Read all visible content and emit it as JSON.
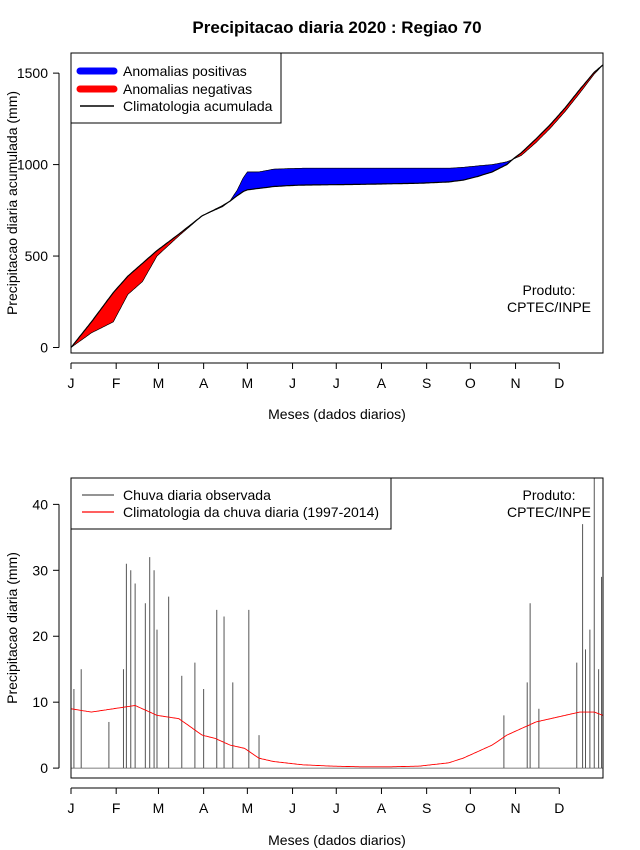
{
  "title": "Precipitacao diaria 2020 : Regiao 70",
  "colors": {
    "positive": "#0000ff",
    "negative": "#ff0000",
    "climatology_line": "#000000",
    "observed_bars": "#555555",
    "daily_climatology": "#ff0000"
  },
  "chart_data": [
    {
      "type": "area",
      "ylabel": "Precipitacao diaria acumulada (mm)",
      "xlabel": "Meses (dados diarios)",
      "month_ticks": [
        "J",
        "F",
        "M",
        "A",
        "M",
        "J",
        "J",
        "A",
        "S",
        "O",
        "N",
        "D"
      ],
      "x_range_days": [
        1,
        366
      ],
      "ylim": [
        -30,
        1610
      ],
      "y_ticks": [
        0,
        500,
        1000,
        1500
      ],
      "legend_position": "top-left",
      "legend": [
        "Anomalias positivas",
        "Anomalias negativas",
        "Climatologia acumulada"
      ],
      "annotation": [
        "Produto:",
        "CPTEC/INPE"
      ],
      "observed_cumulative": {
        "days": [
          1,
          15,
          30,
          40,
          50,
          60,
          75,
          91,
          105,
          110,
          115,
          119,
          122,
          130,
          140,
          150,
          160,
          180,
          200,
          220,
          240,
          260,
          270,
          280,
          290,
          300,
          305,
          310,
          320,
          330,
          340,
          350,
          360,
          366
        ],
        "values": [
          0,
          80,
          140,
          290,
          360,
          500,
          610,
          720,
          770,
          800,
          860,
          925,
          960,
          960,
          975,
          978,
          980,
          980,
          980,
          980,
          980,
          980,
          985,
          993,
          1000,
          1015,
          1032,
          1050,
          1120,
          1200,
          1290,
          1390,
          1495,
          1545
        ]
      },
      "climatology_cumulative": {
        "days": [
          1,
          15,
          30,
          40,
          50,
          60,
          75,
          91,
          105,
          110,
          115,
          119,
          122,
          130,
          140,
          150,
          160,
          180,
          200,
          220,
          240,
          260,
          270,
          280,
          290,
          300,
          305,
          310,
          320,
          330,
          340,
          350,
          360,
          366
        ],
        "values": [
          0,
          140,
          300,
          390,
          460,
          530,
          620,
          720,
          775,
          800,
          830,
          852,
          862,
          870,
          880,
          885,
          888,
          890,
          892,
          895,
          898,
          905,
          915,
          935,
          960,
          1000,
          1035,
          1065,
          1140,
          1220,
          1310,
          1410,
          1505,
          1545
        ]
      }
    },
    {
      "type": "bar",
      "ylabel": "Precipitacao diaria (mm)",
      "xlabel": "Meses (dados diarios)",
      "month_ticks": [
        "J",
        "F",
        "M",
        "A",
        "M",
        "J",
        "J",
        "A",
        "S",
        "O",
        "N",
        "D"
      ],
      "x_range_days": [
        1,
        366
      ],
      "ylim": [
        -1.5,
        44
      ],
      "y_ticks": [
        0,
        10,
        20,
        30,
        40
      ],
      "legend_position": "top-left",
      "legend": [
        "Chuva diaria observada",
        "Climatologia da chuva diaria (1997-2014)"
      ],
      "annotation": [
        "Produto:",
        "CPTEC/INPE"
      ],
      "observed_spikes": [
        {
          "day": 3,
          "value": 12
        },
        {
          "day": 8,
          "value": 15
        },
        {
          "day": 27,
          "value": 7
        },
        {
          "day": 37,
          "value": 15
        },
        {
          "day": 39,
          "value": 31
        },
        {
          "day": 42,
          "value": 30
        },
        {
          "day": 45,
          "value": 28
        },
        {
          "day": 52,
          "value": 25
        },
        {
          "day": 55,
          "value": 32
        },
        {
          "day": 58,
          "value": 30
        },
        {
          "day": 60,
          "value": 21
        },
        {
          "day": 68,
          "value": 26
        },
        {
          "day": 77,
          "value": 14
        },
        {
          "day": 86,
          "value": 16
        },
        {
          "day": 92,
          "value": 12
        },
        {
          "day": 101,
          "value": 24
        },
        {
          "day": 106,
          "value": 23
        },
        {
          "day": 112,
          "value": 13
        },
        {
          "day": 123,
          "value": 24
        },
        {
          "day": 130,
          "value": 5
        },
        {
          "day": 298,
          "value": 8
        },
        {
          "day": 314,
          "value": 13
        },
        {
          "day": 316,
          "value": 25
        },
        {
          "day": 322,
          "value": 9
        },
        {
          "day": 348,
          "value": 16
        },
        {
          "day": 352,
          "value": 37
        },
        {
          "day": 354,
          "value": 18
        },
        {
          "day": 357,
          "value": 21
        },
        {
          "day": 360,
          "value": 44
        },
        {
          "day": 363,
          "value": 15
        },
        {
          "day": 365,
          "value": 29
        }
      ],
      "climatology_daily": {
        "days": [
          1,
          15,
          30,
          45,
          60,
          75,
          91,
          100,
          110,
          120,
          130,
          140,
          160,
          180,
          200,
          220,
          240,
          260,
          270,
          280,
          290,
          300,
          310,
          320,
          330,
          340,
          350,
          360,
          366
        ],
        "values": [
          9,
          8.5,
          9,
          9.5,
          8,
          7.5,
          5,
          4.5,
          3.5,
          3,
          1.5,
          1,
          0.5,
          0.3,
          0.2,
          0.2,
          0.3,
          0.8,
          1.5,
          2.5,
          3.5,
          5,
          6,
          7,
          7.5,
          8,
          8.5,
          8.5,
          8
        ]
      }
    }
  ]
}
